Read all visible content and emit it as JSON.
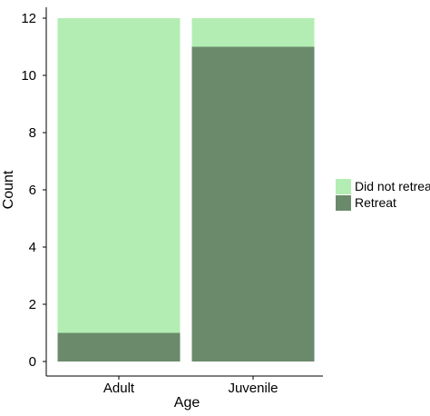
{
  "chart_data": {
    "type": "bar",
    "stacked": true,
    "categories": [
      "Adult",
      "Juvenile"
    ],
    "series": [
      {
        "name": "Retreat",
        "values": [
          1,
          11
        ],
        "color": "#6b8a6b"
      },
      {
        "name": "Did not retreat",
        "values": [
          11,
          1
        ],
        "color": "#b3edb3"
      }
    ],
    "xlabel": "Age",
    "ylabel": "Count",
    "ylim": [
      0,
      12
    ],
    "yticks": [
      0,
      2,
      4,
      6,
      8,
      10,
      12
    ],
    "grid": false,
    "legend": {
      "placement": "right",
      "entries": [
        "Did not retreat",
        "Retreat"
      ]
    }
  }
}
